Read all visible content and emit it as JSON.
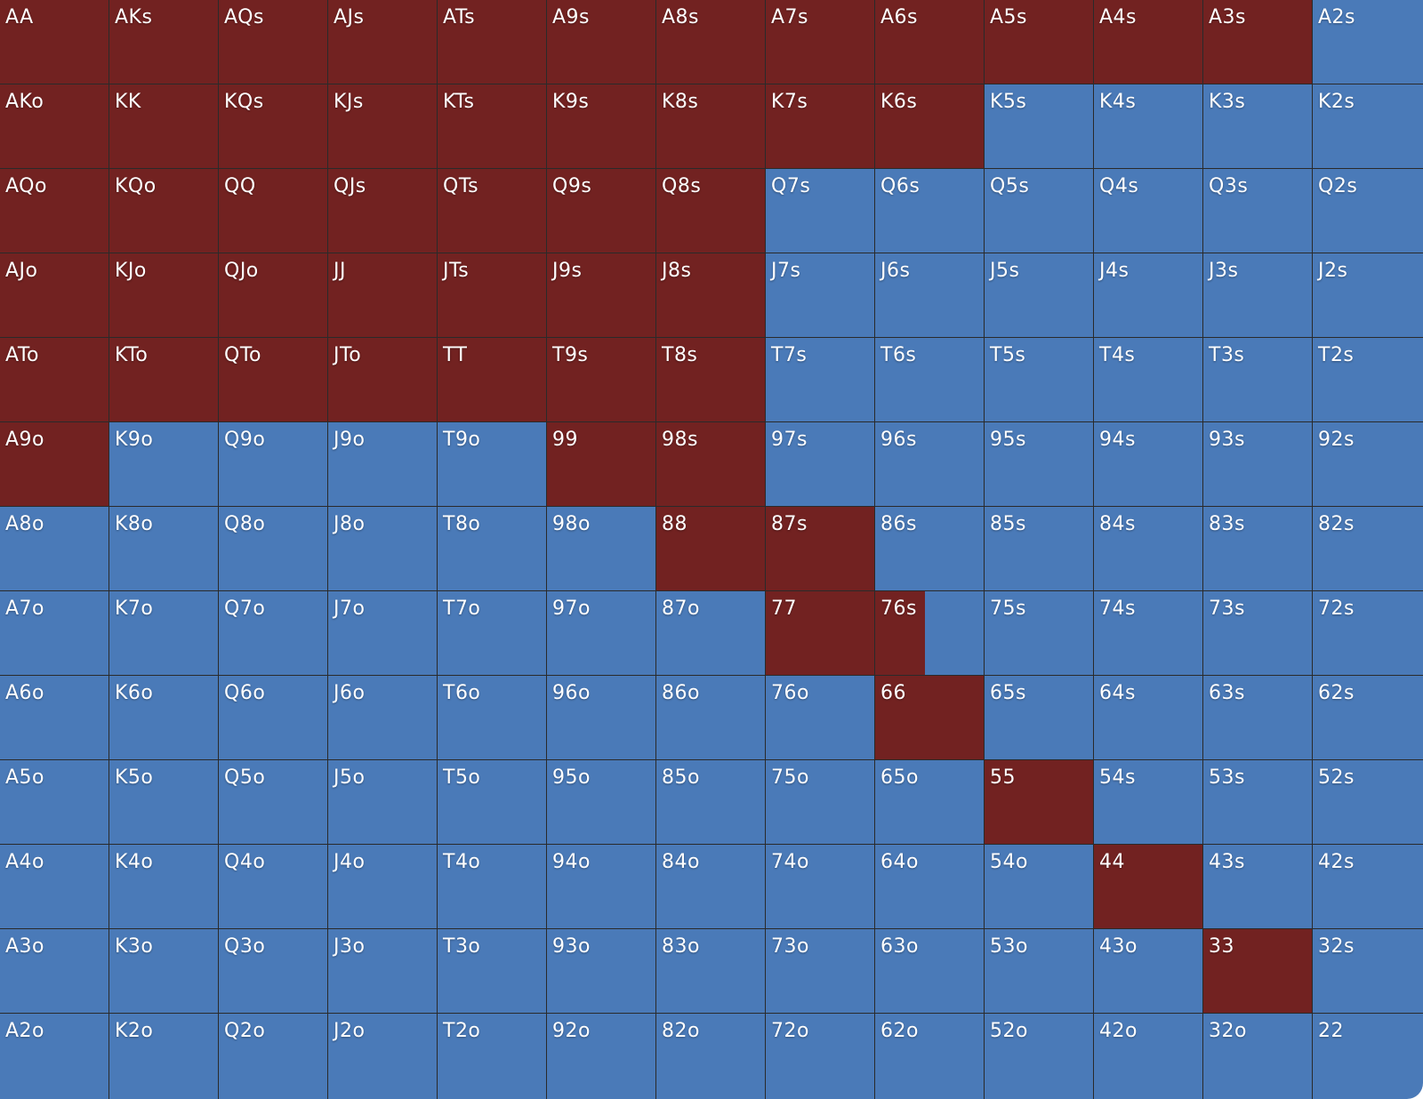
{
  "colors": {
    "raise": "#722221",
    "fold": "#4a7ab8",
    "divider": "#2a2a2a",
    "text": "#ffffff"
  },
  "grid": {
    "rows": [
      [
        "AA",
        "AKs",
        "AQs",
        "AJs",
        "ATs",
        "A9s",
        "A8s",
        "A7s",
        "A6s",
        "A5s",
        "A4s",
        "A3s",
        "A2s"
      ],
      [
        "AKo",
        "KK",
        "KQs",
        "KJs",
        "KTs",
        "K9s",
        "K8s",
        "K7s",
        "K6s",
        "K5s",
        "K4s",
        "K3s",
        "K2s"
      ],
      [
        "AQo",
        "KQo",
        "QQ",
        "QJs",
        "QTs",
        "Q9s",
        "Q8s",
        "Q7s",
        "Q6s",
        "Q5s",
        "Q4s",
        "Q3s",
        "Q2s"
      ],
      [
        "AJo",
        "KJo",
        "QJo",
        "JJ",
        "JTs",
        "J9s",
        "J8s",
        "J7s",
        "J6s",
        "J5s",
        "J4s",
        "J3s",
        "J2s"
      ],
      [
        "ATo",
        "KTo",
        "QTo",
        "JTo",
        "TT",
        "T9s",
        "T8s",
        "T7s",
        "T6s",
        "T5s",
        "T4s",
        "T3s",
        "T2s"
      ],
      [
        "A9o",
        "K9o",
        "Q9o",
        "J9o",
        "T9o",
        "99",
        "98s",
        "97s",
        "96s",
        "95s",
        "94s",
        "93s",
        "92s"
      ],
      [
        "A8o",
        "K8o",
        "Q8o",
        "J8o",
        "T8o",
        "98o",
        "88",
        "87s",
        "86s",
        "85s",
        "84s",
        "83s",
        "82s"
      ],
      [
        "A7o",
        "K7o",
        "Q7o",
        "J7o",
        "T7o",
        "97o",
        "87o",
        "77",
        "76s",
        "75s",
        "74s",
        "73s",
        "72s"
      ],
      [
        "A6o",
        "K6o",
        "Q6o",
        "J6o",
        "T6o",
        "96o",
        "86o",
        "76o",
        "66",
        "65s",
        "64s",
        "63s",
        "62s"
      ],
      [
        "A5o",
        "K5o",
        "Q5o",
        "J5o",
        "T5o",
        "95o",
        "85o",
        "75o",
        "65o",
        "55",
        "54s",
        "53s",
        "52s"
      ],
      [
        "A4o",
        "K4o",
        "Q4o",
        "J4o",
        "T4o",
        "94o",
        "84o",
        "74o",
        "64o",
        "54o",
        "44",
        "43s",
        "42s"
      ],
      [
        "A3o",
        "K3o",
        "Q3o",
        "J3o",
        "T3o",
        "93o",
        "83o",
        "73o",
        "63o",
        "53o",
        "43o",
        "33",
        "32s"
      ],
      [
        "A2o",
        "K2o",
        "Q2o",
        "J2o",
        "T2o",
        "92o",
        "82o",
        "72o",
        "62o",
        "52o",
        "42o",
        "32o",
        "22"
      ]
    ],
    "raise_fraction": [
      [
        1,
        1,
        1,
        1,
        1,
        1,
        1,
        1,
        1,
        1,
        1,
        1,
        0
      ],
      [
        1,
        1,
        1,
        1,
        1,
        1,
        1,
        1,
        1,
        0,
        0,
        0,
        0
      ],
      [
        1,
        1,
        1,
        1,
        1,
        1,
        1,
        0,
        0,
        0,
        0,
        0,
        0
      ],
      [
        1,
        1,
        1,
        1,
        1,
        1,
        1,
        0,
        0,
        0,
        0,
        0,
        0
      ],
      [
        1,
        1,
        1,
        1,
        1,
        1,
        1,
        0,
        0,
        0,
        0,
        0,
        0
      ],
      [
        1,
        0,
        0,
        0,
        0,
        1,
        1,
        0,
        0,
        0,
        0,
        0,
        0
      ],
      [
        0,
        0,
        0,
        0,
        0,
        0,
        1,
        1,
        0,
        0,
        0,
        0,
        0
      ],
      [
        0,
        0,
        0,
        0,
        0,
        0,
        0,
        1,
        0.46,
        0,
        0,
        0,
        0
      ],
      [
        0,
        0,
        0,
        0,
        0,
        0,
        0,
        0,
        1,
        0,
        0,
        0,
        0
      ],
      [
        0,
        0,
        0,
        0,
        0,
        0,
        0,
        0,
        0,
        1,
        0,
        0,
        0
      ],
      [
        0,
        0,
        0,
        0,
        0,
        0,
        0,
        0,
        0,
        0,
        1,
        0,
        0
      ],
      [
        0,
        0,
        0,
        0,
        0,
        0,
        0,
        0,
        0,
        0,
        0,
        1,
        0
      ],
      [
        0,
        0,
        0,
        0,
        0,
        0,
        0,
        0,
        0,
        0,
        0,
        0,
        0
      ]
    ]
  }
}
